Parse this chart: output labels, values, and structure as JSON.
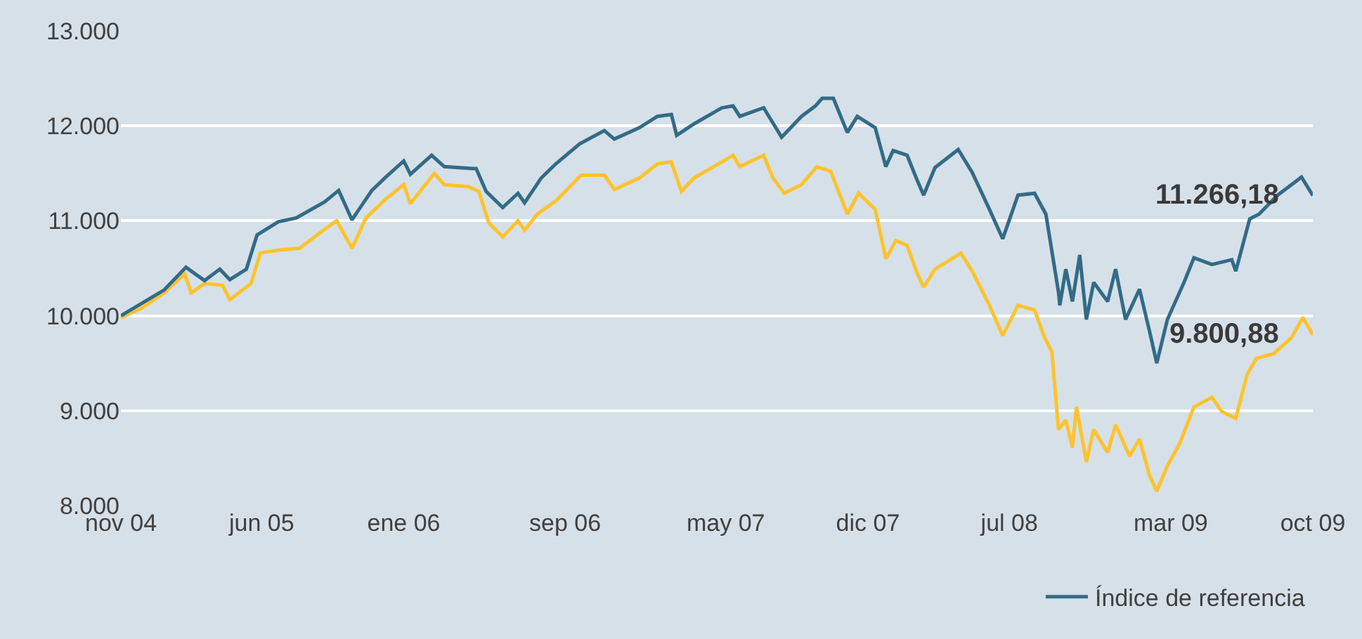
{
  "chart_data": {
    "type": "line",
    "xlim": [
      "2004-11-01",
      "2009-10-01"
    ],
    "xticks": [
      {
        "value": "2004-11-01",
        "label": "nov 04"
      },
      {
        "value": "2005-06-01",
        "label": "jun 05"
      },
      {
        "value": "2006-01-01",
        "label": "ene 06"
      },
      {
        "value": "2006-09-01",
        "label": "sep 06"
      },
      {
        "value": "2007-05-01",
        "label": "may 07"
      },
      {
        "value": "2007-12-01",
        "label": "dic 07"
      },
      {
        "value": "2008-07-01",
        "label": "jul 08"
      },
      {
        "value": "2009-03-01",
        "label": "mar 09"
      },
      {
        "value": "2009-10-01",
        "label": "oct 09"
      }
    ],
    "ylim": [
      8000,
      13000
    ],
    "yticks": [
      {
        "value": 8000,
        "label": "8.000"
      },
      {
        "value": 9000,
        "label": "9.000"
      },
      {
        "value": 10000,
        "label": "10.000"
      },
      {
        "value": 11000,
        "label": "11.000"
      },
      {
        "value": 12000,
        "label": "12.000"
      },
      {
        "value": 13000,
        "label": "13.000"
      }
    ],
    "grid": "y",
    "legend": "bottom right",
    "marker": "none",
    "line_style": "solid",
    "annotations": [
      {
        "text": "11.266,18",
        "x": "2009-10-01",
        "y": 11266.18
      },
      {
        "text": "9.800,88",
        "x": "2009-10-01",
        "y": 9800.88
      }
    ],
    "series": [
      {
        "color": "#fec32d",
        "x": [
          "2004-11-01",
          "2004-11-30",
          "2005-01-05",
          "2005-02-05",
          "2005-02-15",
          "2005-03-07",
          "2005-04-03",
          "2005-04-14",
          "2005-05-16",
          "2005-05-30",
          "2005-06-26",
          "2005-07-28",
          "2005-09-04",
          "2005-09-22",
          "2005-10-15",
          "2005-11-05",
          "2005-12-05",
          "2006-01-01",
          "2006-01-11",
          "2006-02-16",
          "2006-03-03",
          "2006-04-08",
          "2006-04-24",
          "2006-05-09",
          "2006-05-30",
          "2006-06-22",
          "2006-07-02",
          "2006-07-21",
          "2006-08-18",
          "2006-09-25",
          "2006-10-30",
          "2006-11-14",
          "2006-12-22",
          "2007-01-18",
          "2007-02-08",
          "2007-02-23",
          "2007-03-14",
          "2007-04-25",
          "2007-05-12",
          "2007-05-22",
          "2007-06-27",
          "2007-07-11",
          "2007-07-28",
          "2007-08-23",
          "2007-09-15",
          "2007-10-06",
          "2007-10-31",
          "2007-11-17",
          "2007-12-12",
          "2007-12-28",
          "2008-01-12",
          "2008-01-29",
          "2008-02-13",
          "2008-02-23",
          "2008-03-11",
          "2008-04-19",
          "2008-05-06",
          "2008-06-01",
          "2008-06-21",
          "2008-07-14",
          "2008-08-08",
          "2008-08-23",
          "2008-09-03",
          "2008-09-13",
          "2008-09-24",
          "2008-10-04",
          "2008-10-10",
          "2008-10-25",
          "2008-11-05",
          "2008-11-26",
          "2008-12-08",
          "2008-12-29",
          "2009-01-13",
          "2009-01-28",
          "2009-02-08",
          "2009-02-24",
          "2009-03-15",
          "2009-04-05",
          "2009-05-02",
          "2009-05-17",
          "2009-06-07",
          "2009-06-24",
          "2009-07-08",
          "2009-08-03",
          "2009-08-30",
          "2009-09-16",
          "2009-10-01"
        ],
        "values": [
          9980,
          10070,
          10240,
          10440,
          10240,
          10340,
          10320,
          10170,
          10340,
          10660,
          10690,
          10710,
          10910,
          11000,
          10710,
          11030,
          11230,
          11380,
          11180,
          11500,
          11380,
          11360,
          11310,
          10980,
          10830,
          11000,
          10900,
          11070,
          11210,
          11480,
          11480,
          11330,
          11450,
          11600,
          11620,
          11310,
          11450,
          11620,
          11690,
          11570,
          11690,
          11450,
          11290,
          11380,
          11570,
          11520,
          11070,
          11290,
          11120,
          10600,
          10790,
          10740,
          10450,
          10300,
          10490,
          10660,
          10470,
          10110,
          9790,
          10110,
          10060,
          9770,
          9620,
          8800,
          8900,
          8610,
          9040,
          8460,
          8800,
          8560,
          8850,
          8520,
          8700,
          8320,
          8150,
          8420,
          8660,
          9040,
          9140,
          8990,
          8920,
          9380,
          9550,
          9600,
          9770,
          9980,
          9800.88
        ]
      },
      {
        "name": "Índice de referencia",
        "color": "#336b87",
        "x": [
          "2004-11-01",
          "2004-11-30",
          "2005-01-05",
          "2005-02-07",
          "2005-03-07",
          "2005-03-30",
          "2005-04-14",
          "2005-05-09",
          "2005-05-25",
          "2005-06-26",
          "2005-07-23",
          "2005-09-04",
          "2005-09-25",
          "2005-10-15",
          "2005-11-14",
          "2005-12-05",
          "2006-01-01",
          "2006-01-11",
          "2006-02-12",
          "2006-03-03",
          "2006-04-14",
          "2006-04-20",
          "2006-05-05",
          "2006-05-30",
          "2006-06-22",
          "2006-07-02",
          "2006-07-27",
          "2006-08-18",
          "2006-09-23",
          "2006-10-30",
          "2006-11-14",
          "2006-12-22",
          "2007-01-18",
          "2007-02-08",
          "2007-02-16",
          "2007-03-14",
          "2007-04-25",
          "2007-05-12",
          "2007-05-22",
          "2007-06-27",
          "2007-07-24",
          "2007-08-23",
          "2007-09-13",
          "2007-09-23",
          "2007-10-10",
          "2007-10-31",
          "2007-11-15",
          "2007-12-12",
          "2007-12-28",
          "2008-01-08",
          "2008-01-29",
          "2008-02-13",
          "2008-02-23",
          "2008-03-11",
          "2008-04-15",
          "2008-05-06",
          "2008-06-01",
          "2008-06-21",
          "2008-07-14",
          "2008-08-08",
          "2008-08-25",
          "2008-09-13",
          "2008-09-15",
          "2008-09-24",
          "2008-10-04",
          "2008-10-15",
          "2008-10-25",
          "2008-11-05",
          "2008-11-26",
          "2008-12-08",
          "2008-12-23",
          "2009-01-13",
          "2009-01-28",
          "2009-02-08",
          "2009-02-24",
          "2009-03-21",
          "2009-04-05",
          "2009-05-02",
          "2009-06-01",
          "2009-06-07",
          "2009-06-28",
          "2009-07-12",
          "2009-08-09",
          "2009-09-14",
          "2009-10-01"
        ],
        "values": [
          10000,
          10120,
          10270,
          10510,
          10370,
          10490,
          10380,
          10490,
          10850,
          10990,
          11030,
          11200,
          11320,
          11010,
          11320,
          11460,
          11630,
          11490,
          11690,
          11570,
          11550,
          11550,
          11310,
          11140,
          11290,
          11190,
          11450,
          11600,
          11810,
          11950,
          11860,
          11980,
          12100,
          12120,
          11900,
          12020,
          12190,
          12210,
          12100,
          12190,
          11880,
          12100,
          12210,
          12290,
          12290,
          11930,
          12100,
          11980,
          11570,
          11740,
          11690,
          11430,
          11270,
          11560,
          11750,
          11510,
          11120,
          10810,
          11270,
          11290,
          11070,
          10250,
          10110,
          10490,
          10150,
          10640,
          9960,
          10350,
          10150,
          10490,
          9960,
          10280,
          9840,
          9500,
          9960,
          10350,
          10610,
          10540,
          10590,
          10470,
          11020,
          11070,
          11270,
          11460,
          11266.18
        ]
      }
    ]
  }
}
